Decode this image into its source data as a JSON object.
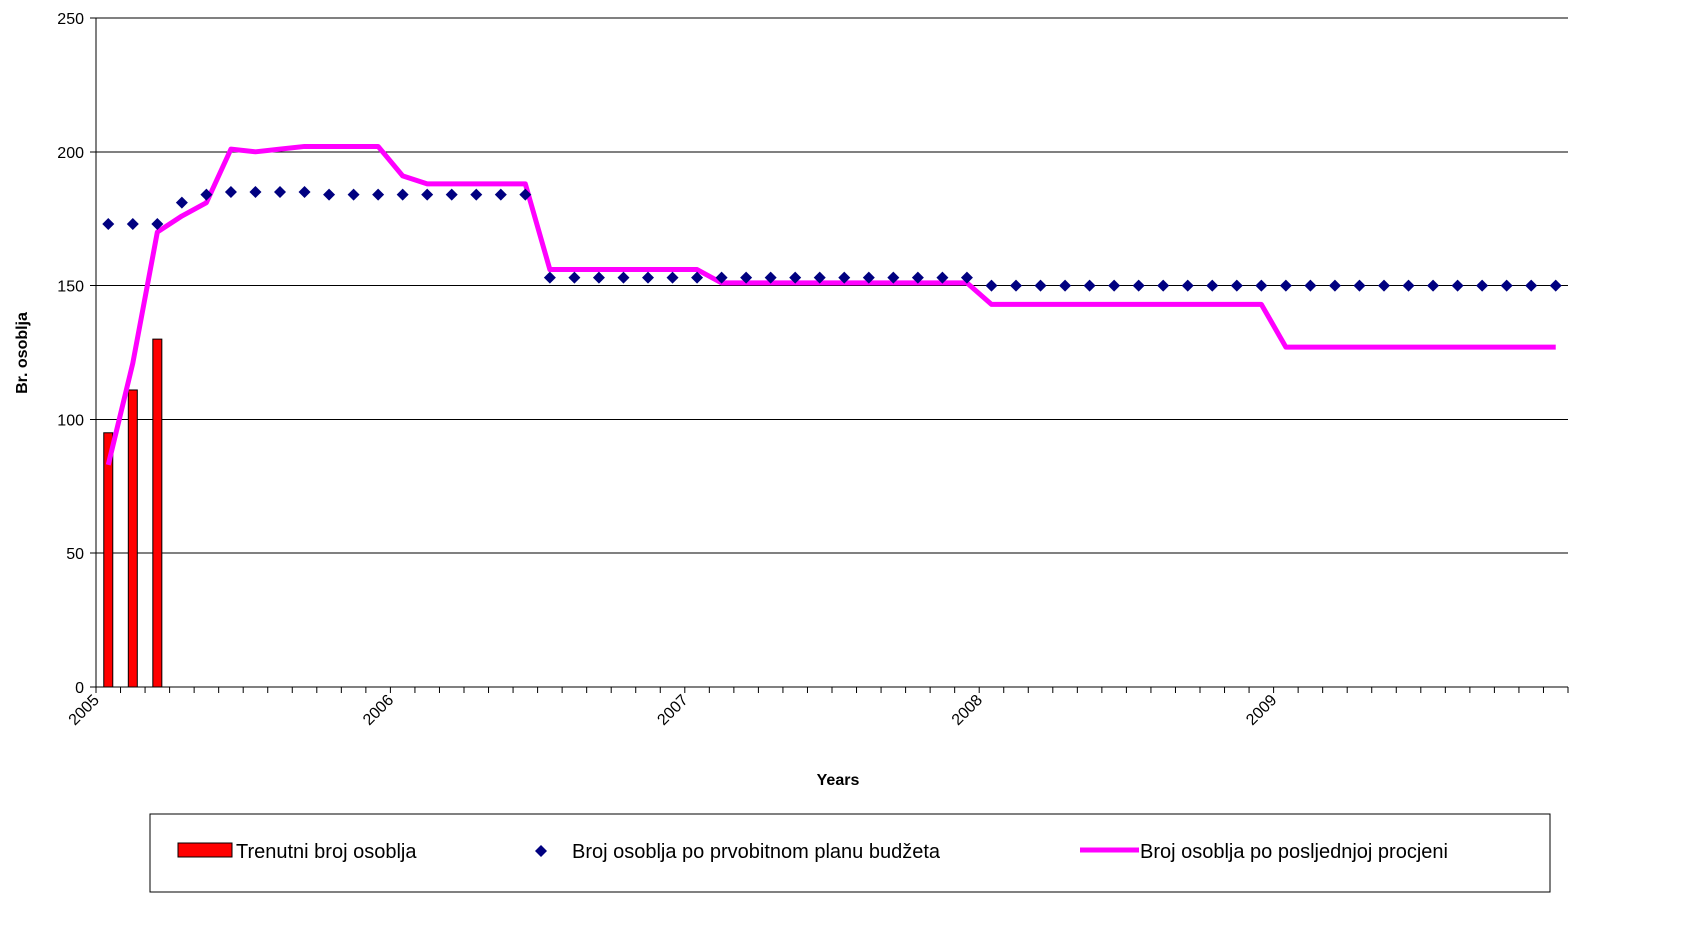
{
  "chart_data": {
    "type": "line",
    "xlabel": "Years",
    "ylabel": "Br. osoblja",
    "ylim": [
      0,
      250
    ],
    "yticks": [
      "0",
      "50",
      "100",
      "150",
      "200",
      "250"
    ],
    "xtick_labels": [
      "2005",
      "2006",
      "2007",
      "2008",
      "2009"
    ],
    "grid": "horizontal",
    "legend_position": "bottom",
    "colors": {
      "bars": "#ff0000",
      "markers": "#000080",
      "line": "#ff00ff"
    },
    "series": [
      {
        "name": "Trenutni broj osoblja",
        "type": "bar",
        "values": [
          95,
          111,
          130
        ]
      },
      {
        "name": "Broj osoblja po prvobitnom planu budžeta",
        "type": "scatter",
        "marker": "diamond",
        "values": [
          173,
          173,
          173,
          181,
          184,
          185,
          185,
          185,
          185,
          184,
          184,
          184,
          184,
          184,
          184,
          184,
          184,
          184,
          153,
          153,
          153,
          153,
          153,
          153,
          153,
          153,
          153,
          153,
          153,
          153,
          153,
          153,
          153,
          153,
          153,
          153,
          150,
          150,
          150,
          150,
          150,
          150,
          150,
          150,
          150,
          150,
          150,
          150,
          150,
          150,
          150,
          150,
          150,
          150,
          150,
          150,
          150,
          150,
          150,
          150
        ]
      },
      {
        "name": "Broj osoblja po posljednjoj procjeni",
        "type": "line",
        "values": [
          83,
          121,
          170,
          176,
          181,
          201,
          200,
          201,
          202,
          202,
          202,
          202,
          191,
          188,
          188,
          188,
          188,
          188,
          156,
          156,
          156,
          156,
          156,
          156,
          156,
          151,
          151,
          151,
          151,
          151,
          151,
          151,
          151,
          151,
          151,
          151,
          143,
          143,
          143,
          143,
          143,
          143,
          143,
          143,
          143,
          143,
          143,
          143,
          127,
          127,
          127,
          127,
          127,
          127,
          127,
          127,
          127,
          127,
          127,
          127
        ]
      }
    ]
  }
}
